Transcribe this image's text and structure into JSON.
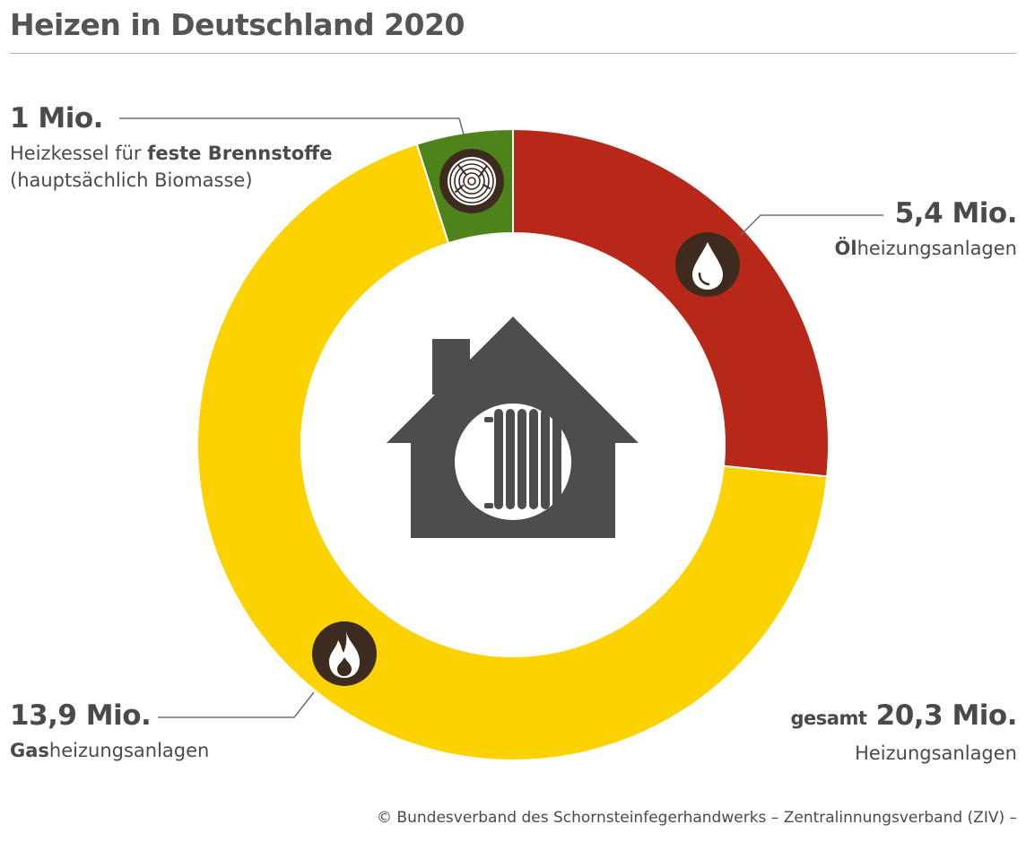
{
  "title": "Heizen in Deutschland 2020",
  "chart_data": {
    "type": "pie",
    "title": "Heizen in Deutschland 2020",
    "unit": "Mio.",
    "categories": [
      "Ölheizungsanlagen",
      "Gasheizungsanlagen",
      "Heizkessel für feste Brennstoffe"
    ],
    "values": [
      5.4,
      13.9,
      1.0
    ],
    "total": 20.3,
    "colors": [
      "#b72818",
      "#fcd200",
      "#4e821a"
    ],
    "icons": [
      "oil-drop-icon",
      "flame-icon",
      "wood-log-icon"
    ],
    "center_icon": "house-radiator-icon"
  },
  "labels": {
    "solid": {
      "value": "1 Mio.",
      "line1_pre": "Heizkessel für ",
      "line1_bold": "feste Brennstoffe",
      "line2": "(hauptsächlich Biomasse)"
    },
    "oil": {
      "value": "5,4 Mio.",
      "bold": "Öl",
      "rest": "heizungsanlagen"
    },
    "gas": {
      "value": "13,9 Mio.",
      "bold": "Gas",
      "rest": "heizungsanlagen"
    },
    "total": {
      "pre": "gesamt",
      "value": "20,3 Mio.",
      "desc": "Heizungsanlagen"
    }
  },
  "footer": "© Bundesverband des Schornsteinfegerhandwerks – Zentralinnungsverband (ZIV) –"
}
